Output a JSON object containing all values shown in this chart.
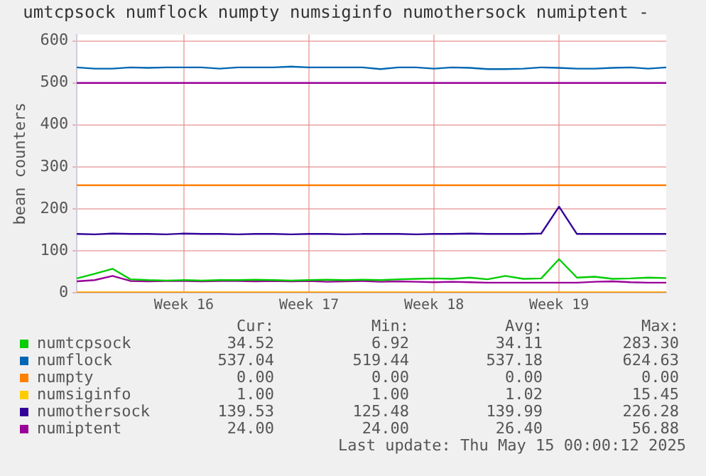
{
  "chart_data": {
    "type": "line",
    "title": "umtcpsock numflock numpty numsiginfo numothersock numiptent -",
    "ylabel": "bean counters",
    "categories": [
      null,
      null,
      null,
      null,
      null,
      null,
      "Week 16",
      null,
      null,
      null,
      null,
      null,
      null,
      "Week 17",
      null,
      null,
      null,
      null,
      null,
      null,
      "Week 18",
      null,
      null,
      null,
      null,
      null,
      null,
      "Week 19",
      null,
      null,
      null,
      null,
      null,
      null
    ],
    "ylim": [
      0,
      615
    ],
    "yticks": [
      0,
      100,
      200,
      300,
      400,
      500,
      600
    ],
    "grid": true,
    "legend": "bottom",
    "marker": "none",
    "line_style": "solid",
    "series": [
      {
        "name": "numtcpsock",
        "color": "#00cc00",
        "values": [
          34,
          45,
          57,
          32,
          30,
          29,
          30,
          29,
          30,
          30,
          31,
          30,
          29,
          30,
          31,
          30,
          31,
          30,
          32,
          33,
          34,
          33,
          36,
          32,
          40,
          33,
          34,
          80,
          36,
          38,
          33,
          34,
          36,
          35
        ]
      },
      {
        "name": "numflock",
        "color": "#0066b3",
        "values": [
          537,
          534,
          534,
          537,
          536,
          537,
          537,
          537,
          534,
          537,
          537,
          537,
          539,
          537,
          537,
          537,
          537,
          533,
          537,
          537,
          534,
          537,
          536,
          533,
          533,
          534,
          537,
          536,
          534,
          534,
          536,
          537,
          534,
          537
        ]
      },
      {
        "name": "numpty",
        "color": "#ff8000",
        "values": [
          0,
          0,
          0,
          0,
          0,
          0,
          0,
          0,
          0,
          0,
          0,
          0,
          0,
          0,
          0,
          0,
          0,
          0,
          0,
          0,
          0,
          0,
          0,
          0,
          0,
          0,
          0,
          0,
          0,
          0,
          0,
          0,
          0,
          0
        ]
      },
      {
        "name": "numsiginfo",
        "color": "#ffcc00",
        "values": [
          1,
          1,
          1,
          1,
          1,
          1,
          1,
          1,
          1,
          1,
          1,
          1,
          1,
          1,
          1,
          1,
          1,
          1,
          1,
          1,
          1,
          1,
          1,
          1,
          1,
          1,
          1,
          1,
          1,
          1,
          1,
          1,
          1,
          1
        ]
      },
      {
        "name": "numothersock",
        "color": "#330099",
        "values": [
          140,
          139,
          141,
          140,
          140,
          139,
          141,
          140,
          140,
          139,
          140,
          140,
          139,
          140,
          140,
          139,
          140,
          140,
          140,
          139,
          140,
          140,
          141,
          140,
          140,
          140,
          141,
          205,
          140,
          140,
          140,
          140,
          140,
          140
        ]
      },
      {
        "name": "numiptent",
        "color": "#990099",
        "values": [
          27,
          30,
          40,
          28,
          27,
          28,
          28,
          27,
          28,
          28,
          27,
          28,
          27,
          28,
          26,
          27,
          28,
          26,
          27,
          26,
          25,
          26,
          25,
          24,
          24,
          24,
          24,
          24,
          24,
          26,
          27,
          25,
          24,
          24
        ]
      }
    ],
    "ref_lines": [
      {
        "axis": "y",
        "value": 500,
        "color": "#990099"
      },
      {
        "axis": "y",
        "value": 256,
        "color": "#ff8000"
      }
    ],
    "annotations": [
      "Cur:",
      "Min:",
      "Avg:",
      "Max:",
      "34.52",
      "6.92",
      "34.11",
      "283.30",
      "537.04",
      "519.44",
      "537.18",
      "624.63",
      "0.00",
      "0.00",
      "0.00",
      "0.00",
      "1.00",
      "1.00",
      "1.02",
      "15.45",
      "139.53",
      "125.48",
      "139.99",
      "226.28",
      "24.00",
      "24.00",
      "26.40",
      "56.88",
      "Last update: Thu May 15 00:00:12 2025"
    ]
  }
}
